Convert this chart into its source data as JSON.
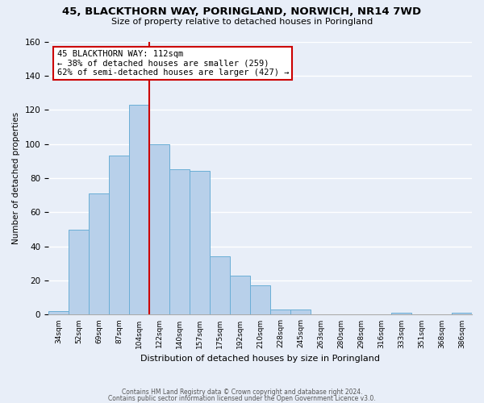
{
  "title": "45, BLACKTHORN WAY, PORINGLAND, NORWICH, NR14 7WD",
  "subtitle": "Size of property relative to detached houses in Poringland",
  "xlabel": "Distribution of detached houses by size in Poringland",
  "ylabel": "Number of detached properties",
  "bin_labels": [
    "34sqm",
    "52sqm",
    "69sqm",
    "87sqm",
    "104sqm",
    "122sqm",
    "140sqm",
    "157sqm",
    "175sqm",
    "192sqm",
    "210sqm",
    "228sqm",
    "245sqm",
    "263sqm",
    "280sqm",
    "298sqm",
    "316sqm",
    "333sqm",
    "351sqm",
    "368sqm",
    "386sqm"
  ],
  "bar_values": [
    2,
    50,
    71,
    93,
    123,
    100,
    85,
    84,
    34,
    23,
    17,
    3,
    3,
    0,
    0,
    0,
    0,
    1,
    0,
    0,
    1
  ],
  "bar_color": "#b8d0ea",
  "bar_edge_color": "#6aaed6",
  "ylim": [
    0,
    160
  ],
  "yticks": [
    0,
    20,
    40,
    60,
    80,
    100,
    120,
    140,
    160
  ],
  "property_line_x": 5,
  "property_line_color": "#cc0000",
  "annotation_title": "45 BLACKTHORN WAY: 112sqm",
  "annotation_line1": "← 38% of detached houses are smaller (259)",
  "annotation_line2": "62% of semi-detached houses are larger (427) →",
  "annotation_box_color": "#ffffff",
  "annotation_box_edge_color": "#cc0000",
  "footer1": "Contains HM Land Registry data © Crown copyright and database right 2024.",
  "footer2": "Contains public sector information licensed under the Open Government Licence v3.0.",
  "background_color": "#e8eef8",
  "plot_background_color": "#e8eef8",
  "title_fontsize": 9.5,
  "subtitle_fontsize": 8,
  "annotation_fontsize": 7.5
}
